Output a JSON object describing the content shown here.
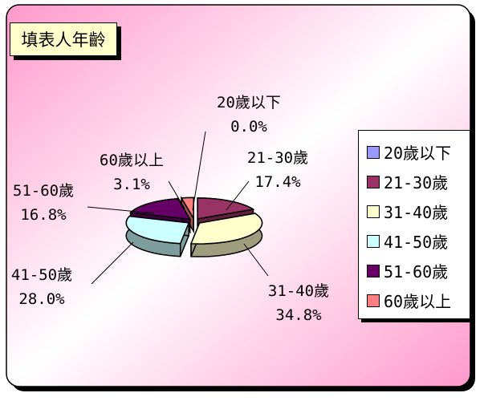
{
  "chart_data": {
    "type": "pie",
    "title": "填表人年齡",
    "categories": [
      "20歲以下",
      "21-30歲",
      "31-40歲",
      "41-50歲",
      "51-60歲",
      "60歲以上"
    ],
    "values": [
      0.0,
      17.4,
      34.8,
      28.0,
      16.8,
      3.1
    ],
    "value_labels": [
      "0.0%",
      "17.4%",
      "34.8%",
      "28.0%",
      "16.8%",
      "3.1%"
    ],
    "unit": "%",
    "colors": [
      "#9999ff",
      "#993366",
      "#ffffcc",
      "#ccffff",
      "#660066",
      "#ff8080"
    ],
    "exploded": true,
    "three_d": true,
    "legend": "right"
  },
  "colors": {
    "frame_gradient_start": "#ff99cc",
    "frame_gradient_mid": "#ffffff",
    "frame_border": "#000000",
    "title_box_fill": "#ffffcc"
  }
}
